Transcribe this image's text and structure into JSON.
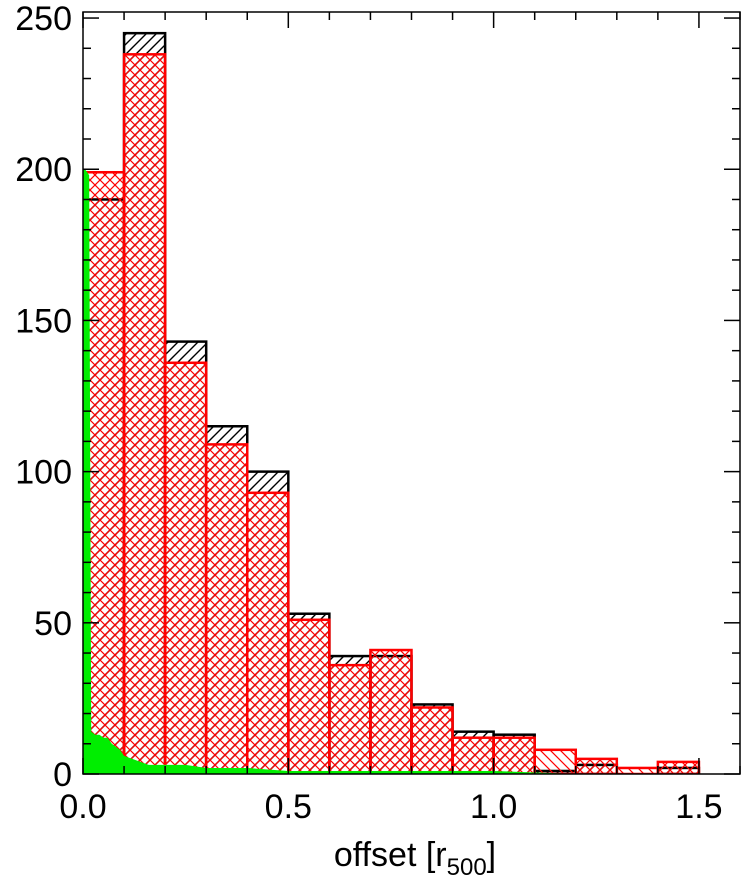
{
  "chart_data": {
    "type": "bar",
    "xlabel": {
      "main": "offset [r",
      "sub": "500",
      "end": "]"
    },
    "xlim": [
      0.0,
      1.6
    ],
    "ylim": [
      0,
      252
    ],
    "x_ticks": [
      {
        "value": 0.0,
        "label": "0.0"
      },
      {
        "value": 0.5,
        "label": "0.5"
      },
      {
        "value": 1.0,
        "label": "1.0"
      },
      {
        "value": 1.5,
        "label": "1.5"
      }
    ],
    "y_ticks": [
      {
        "value": 0,
        "label": "0"
      },
      {
        "value": 50,
        "label": "50"
      },
      {
        "value": 100,
        "label": "100"
      },
      {
        "value": 150,
        "label": "150"
      },
      {
        "value": 200,
        "label": "200"
      },
      {
        "value": 250,
        "label": "250"
      }
    ],
    "bin_edges": [
      0.0,
      0.1,
      0.2,
      0.3,
      0.4,
      0.5,
      0.6,
      0.7,
      0.8,
      0.9,
      1.0,
      1.1,
      1.2,
      1.3,
      1.4,
      1.5,
      1.6
    ],
    "series": [
      {
        "style": "black-hatched",
        "color": "#000000",
        "values": [
          190,
          245,
          143,
          115,
          100,
          53,
          39,
          39,
          23,
          14,
          13,
          1,
          3,
          0,
          2,
          0
        ]
      },
      {
        "style": "red-crosshatched",
        "color": "#ff0000",
        "values": [
          199,
          238,
          136,
          109,
          93,
          51,
          36,
          41,
          22,
          12,
          12,
          8,
          5,
          2,
          4,
          0
        ]
      },
      {
        "style": "green-filled",
        "color": "#00ee00",
        "x": [
          0.0,
          0.005,
          0.01,
          0.015,
          0.02,
          0.03,
          0.04,
          0.05,
          0.06,
          0.07,
          0.08,
          0.09,
          0.1,
          0.12,
          0.14,
          0.16,
          0.2,
          0.25,
          0.3,
          0.35,
          0.4,
          0.5,
          0.6,
          0.8,
          1.0,
          1.2,
          1.4,
          1.6
        ],
        "values": [
          200,
          200,
          199,
          198,
          14,
          13,
          13,
          12,
          12,
          10,
          9,
          8,
          6,
          5,
          4,
          3,
          3,
          3,
          2,
          2,
          2,
          1,
          1,
          1,
          1,
          0,
          0,
          0
        ]
      }
    ]
  }
}
